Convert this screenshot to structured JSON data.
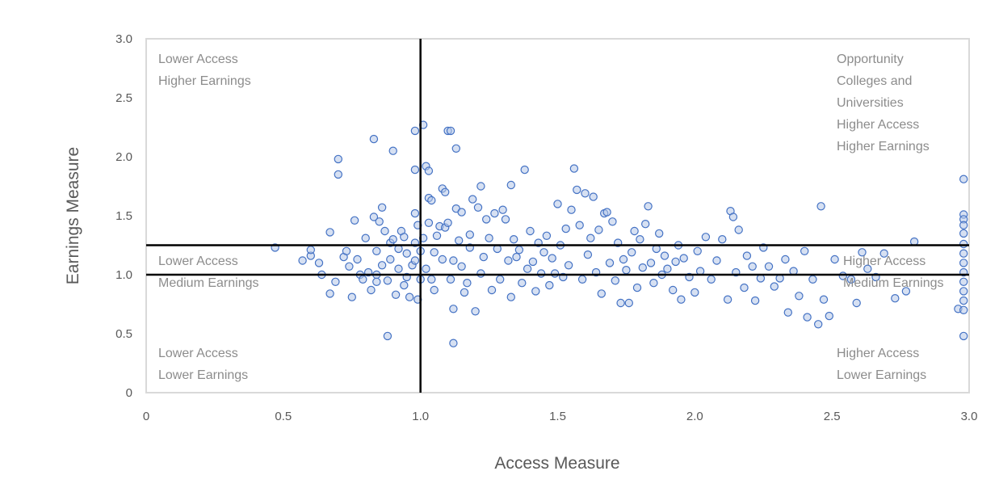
{
  "chart_data": {
    "type": "scatter",
    "title": "",
    "xlabel": "Access Measure",
    "ylabel": "Earnings Measure",
    "xlim": [
      0,
      3.0
    ],
    "ylim": [
      0,
      3.0
    ],
    "x_ticks": [
      "0",
      "0.5",
      "1.0",
      "1.5",
      "2.0",
      "2.5",
      "3.0"
    ],
    "y_ticks": [
      "0",
      "0.5",
      "1.0",
      "1.5",
      "2.0",
      "2.5",
      "3.0"
    ],
    "grid": false,
    "legend": "none",
    "reference_lines": {
      "vertical_x": [
        1.0
      ],
      "horizontal_y": [
        1.0,
        1.25
      ]
    },
    "quadrant_labels": {
      "top_left": [
        "Lower Access",
        "Higher Earnings"
      ],
      "top_right": [
        "Opportunity",
        "Colleges and",
        "Universities",
        "Higher Access",
        "Higher Earnings"
      ],
      "middle_left": [
        "Lower Access",
        "Medium Earnings"
      ],
      "middle_right": [
        "Higher Access",
        "Medium Earnings"
      ],
      "bottom_left": [
        "Lower Access",
        "Lower Earnings"
      ],
      "bottom_right": [
        "Higher Access",
        "Lower Earnings"
      ]
    },
    "marker_color": "#4472c4",
    "marker_fill": "#b4c7e7",
    "series": [
      {
        "name": "",
        "points": [
          [
            0.47,
            1.23
          ],
          [
            0.57,
            1.12
          ],
          [
            0.6,
            1.16
          ],
          [
            0.6,
            1.21
          ],
          [
            0.63,
            1.1
          ],
          [
            0.64,
            1.0
          ],
          [
            0.67,
            1.36
          ],
          [
            0.67,
            0.84
          ],
          [
            0.69,
            0.94
          ],
          [
            0.7,
            1.98
          ],
          [
            0.7,
            1.85
          ],
          [
            0.72,
            1.15
          ],
          [
            0.73,
            1.2
          ],
          [
            0.74,
            1.07
          ],
          [
            0.75,
            0.81
          ],
          [
            0.76,
            1.46
          ],
          [
            0.77,
            1.13
          ],
          [
            0.78,
            1.0
          ],
          [
            0.79,
            0.96
          ],
          [
            0.8,
            1.31
          ],
          [
            0.81,
            1.02
          ],
          [
            0.82,
            0.87
          ],
          [
            0.83,
            2.15
          ],
          [
            0.83,
            1.49
          ],
          [
            0.84,
            1.2
          ],
          [
            0.84,
            1.0
          ],
          [
            0.84,
            0.94
          ],
          [
            0.85,
            1.45
          ],
          [
            0.86,
            1.57
          ],
          [
            0.86,
            1.08
          ],
          [
            0.87,
            1.37
          ],
          [
            0.88,
            0.48
          ],
          [
            0.88,
            0.95
          ],
          [
            0.89,
            1.27
          ],
          [
            0.89,
            1.13
          ],
          [
            0.9,
            2.05
          ],
          [
            0.9,
            1.3
          ],
          [
            0.91,
            0.83
          ],
          [
            0.92,
            1.22
          ],
          [
            0.92,
            1.05
          ],
          [
            0.93,
            1.37
          ],
          [
            0.94,
            1.32
          ],
          [
            0.94,
            0.91
          ],
          [
            0.95,
            1.18
          ],
          [
            0.95,
            0.98
          ],
          [
            0.96,
            0.81
          ],
          [
            0.97,
            1.08
          ],
          [
            0.98,
            2.22
          ],
          [
            0.98,
            1.89
          ],
          [
            0.98,
            1.52
          ],
          [
            0.98,
            1.27
          ],
          [
            0.98,
            1.12
          ],
          [
            0.99,
            0.79
          ],
          [
            0.99,
            1.42
          ],
          [
            1.0,
            0.96
          ],
          [
            1.0,
            1.2
          ],
          [
            1.01,
            2.27
          ],
          [
            1.01,
            1.31
          ],
          [
            1.02,
            1.92
          ],
          [
            1.02,
            1.05
          ],
          [
            1.03,
            1.88
          ],
          [
            1.03,
            1.44
          ],
          [
            1.03,
            1.65
          ],
          [
            1.04,
            1.63
          ],
          [
            1.04,
            0.96
          ],
          [
            1.05,
            1.19
          ],
          [
            1.05,
            0.87
          ],
          [
            1.06,
            1.33
          ],
          [
            1.07,
            1.41
          ],
          [
            1.08,
            1.73
          ],
          [
            1.08,
            1.13
          ],
          [
            1.09,
            1.7
          ],
          [
            1.09,
            1.4
          ],
          [
            1.1,
            1.44
          ],
          [
            1.1,
            2.22
          ],
          [
            1.11,
            2.22
          ],
          [
            1.11,
            0.96
          ],
          [
            1.12,
            0.42
          ],
          [
            1.12,
            0.71
          ],
          [
            1.12,
            1.12
          ],
          [
            1.13,
            2.07
          ],
          [
            1.13,
            1.56
          ],
          [
            1.14,
            1.29
          ],
          [
            1.15,
            1.53
          ],
          [
            1.15,
            1.07
          ],
          [
            1.16,
            0.85
          ],
          [
            1.17,
            0.93
          ],
          [
            1.18,
            1.23
          ],
          [
            1.18,
            1.34
          ],
          [
            1.19,
            1.64
          ],
          [
            1.2,
            0.69
          ],
          [
            1.21,
            1.57
          ],
          [
            1.22,
            1.75
          ],
          [
            1.22,
            1.01
          ],
          [
            1.23,
            1.15
          ],
          [
            1.24,
            1.47
          ],
          [
            1.25,
            1.31
          ],
          [
            1.26,
            0.87
          ],
          [
            1.27,
            1.52
          ],
          [
            1.28,
            1.22
          ],
          [
            1.29,
            0.96
          ],
          [
            1.3,
            1.55
          ],
          [
            1.31,
            1.47
          ],
          [
            1.32,
            1.12
          ],
          [
            1.33,
            1.76
          ],
          [
            1.33,
            0.81
          ],
          [
            1.34,
            1.3
          ],
          [
            1.35,
            1.15
          ],
          [
            1.36,
            1.21
          ],
          [
            1.37,
            0.93
          ],
          [
            1.38,
            1.89
          ],
          [
            1.39,
            1.05
          ],
          [
            1.4,
            1.37
          ],
          [
            1.41,
            1.11
          ],
          [
            1.42,
            0.86
          ],
          [
            1.43,
            1.27
          ],
          [
            1.44,
            1.01
          ],
          [
            1.45,
            1.19
          ],
          [
            1.46,
            1.33
          ],
          [
            1.47,
            0.91
          ],
          [
            1.48,
            1.14
          ],
          [
            1.49,
            1.01
          ],
          [
            1.5,
            1.6
          ],
          [
            1.51,
            1.25
          ],
          [
            1.52,
            0.98
          ],
          [
            1.53,
            1.39
          ],
          [
            1.54,
            1.08
          ],
          [
            1.55,
            1.55
          ],
          [
            1.56,
            1.9
          ],
          [
            1.57,
            1.72
          ],
          [
            1.58,
            1.42
          ],
          [
            1.59,
            0.96
          ],
          [
            1.6,
            1.69
          ],
          [
            1.61,
            1.17
          ],
          [
            1.62,
            1.31
          ],
          [
            1.63,
            1.66
          ],
          [
            1.64,
            1.02
          ],
          [
            1.65,
            1.38
          ],
          [
            1.66,
            0.84
          ],
          [
            1.67,
            1.52
          ],
          [
            1.68,
            1.53
          ],
          [
            1.69,
            1.1
          ],
          [
            1.7,
            1.45
          ],
          [
            1.71,
            0.95
          ],
          [
            1.72,
            1.27
          ],
          [
            1.73,
            0.76
          ],
          [
            1.74,
            1.13
          ],
          [
            1.75,
            1.04
          ],
          [
            1.76,
            0.76
          ],
          [
            1.77,
            1.19
          ],
          [
            1.78,
            1.37
          ],
          [
            1.79,
            0.89
          ],
          [
            1.8,
            1.3
          ],
          [
            1.81,
            1.06
          ],
          [
            1.82,
            1.43
          ],
          [
            1.83,
            1.58
          ],
          [
            1.84,
            1.1
          ],
          [
            1.85,
            0.93
          ],
          [
            1.86,
            1.22
          ],
          [
            1.87,
            1.35
          ],
          [
            1.88,
            1.0
          ],
          [
            1.89,
            1.16
          ],
          [
            1.9,
            1.05
          ],
          [
            1.92,
            0.87
          ],
          [
            1.93,
            1.11
          ],
          [
            1.94,
            1.25
          ],
          [
            1.95,
            0.79
          ],
          [
            1.96,
            1.14
          ],
          [
            1.98,
            0.98
          ],
          [
            2.0,
            0.85
          ],
          [
            2.01,
            1.2
          ],
          [
            2.02,
            1.03
          ],
          [
            2.04,
            1.32
          ],
          [
            2.06,
            0.96
          ],
          [
            2.08,
            1.12
          ],
          [
            2.1,
            1.3
          ],
          [
            2.12,
            0.79
          ],
          [
            2.13,
            1.54
          ],
          [
            2.14,
            1.49
          ],
          [
            2.15,
            1.02
          ],
          [
            2.16,
            1.38
          ],
          [
            2.18,
            0.89
          ],
          [
            2.19,
            1.16
          ],
          [
            2.21,
            1.07
          ],
          [
            2.22,
            0.78
          ],
          [
            2.24,
            0.97
          ],
          [
            2.25,
            1.23
          ],
          [
            2.27,
            1.07
          ],
          [
            2.29,
            0.9
          ],
          [
            2.31,
            0.97
          ],
          [
            2.33,
            1.13
          ],
          [
            2.34,
            0.68
          ],
          [
            2.36,
            1.03
          ],
          [
            2.38,
            0.82
          ],
          [
            2.4,
            1.2
          ],
          [
            2.41,
            0.64
          ],
          [
            2.43,
            0.96
          ],
          [
            2.45,
            0.58
          ],
          [
            2.46,
            1.58
          ],
          [
            2.47,
            0.79
          ],
          [
            2.49,
            0.65
          ],
          [
            2.51,
            1.13
          ],
          [
            2.54,
            0.99
          ],
          [
            2.57,
            0.96
          ],
          [
            2.59,
            0.76
          ],
          [
            2.61,
            1.19
          ],
          [
            2.63,
            1.05
          ],
          [
            2.66,
            0.98
          ],
          [
            2.69,
            1.18
          ],
          [
            2.73,
            0.8
          ],
          [
            2.77,
            0.86
          ],
          [
            2.8,
            1.28
          ],
          [
            2.96,
            0.71
          ],
          [
            2.98,
            1.81
          ],
          [
            2.98,
            1.51
          ],
          [
            2.98,
            1.47
          ],
          [
            2.98,
            1.42
          ],
          [
            2.98,
            1.35
          ],
          [
            2.98,
            1.26
          ],
          [
            2.98,
            1.18
          ],
          [
            2.98,
            1.1
          ],
          [
            2.98,
            1.02
          ],
          [
            2.98,
            0.94
          ],
          [
            2.98,
            0.86
          ],
          [
            2.98,
            0.78
          ],
          [
            2.98,
            0.7
          ],
          [
            2.98,
            0.48
          ]
        ]
      }
    ]
  }
}
